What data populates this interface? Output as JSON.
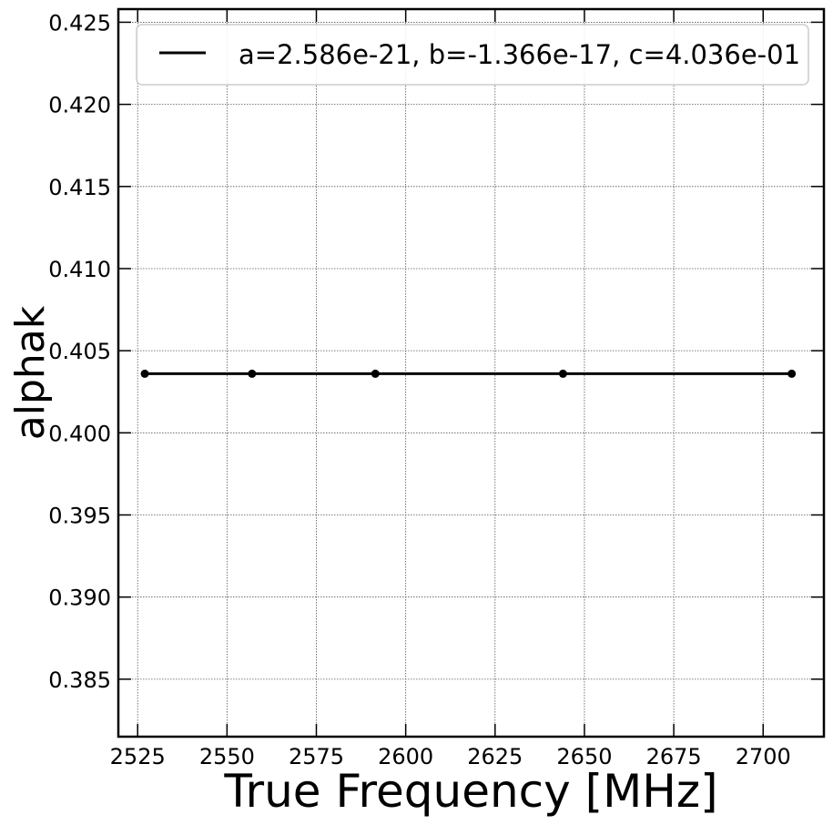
{
  "chart_data": {
    "type": "line",
    "title": "",
    "xlabel": "True Frequency [MHz]",
    "ylabel": "alphak",
    "xlim": [
      2519.6,
      2717.0
    ],
    "ylim": [
      0.3815,
      0.4258
    ],
    "xticks": [
      2525,
      2550,
      2575,
      2600,
      2625,
      2650,
      2675,
      2700
    ],
    "xtick_labels": [
      "2525",
      "2550",
      "2575",
      "2600",
      "2625",
      "2650",
      "2675",
      "2700"
    ],
    "yticks": [
      0.385,
      0.39,
      0.395,
      0.4,
      0.405,
      0.41,
      0.415,
      0.42,
      0.425
    ],
    "ytick_labels": [
      "0.385",
      "0.390",
      "0.395",
      "0.400",
      "0.405",
      "0.410",
      "0.415",
      "0.420",
      "0.425"
    ],
    "grid": true,
    "legend_position": "top",
    "series": [
      {
        "name": "a=2.586e-21, b=-1.366e-17, c=4.036e-01",
        "color": "#000000",
        "x": [
          2527.0,
          2557.0,
          2591.5,
          2644.0,
          2708.0
        ],
        "y": [
          0.4036,
          0.4036,
          0.4036,
          0.4036,
          0.4036
        ]
      }
    ]
  }
}
